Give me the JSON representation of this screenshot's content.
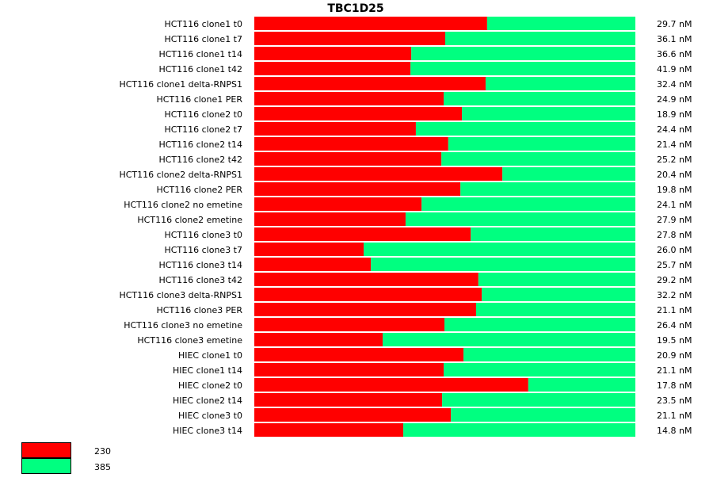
{
  "chart_data": {
    "type": "bar",
    "stacked": true,
    "normalized": true,
    "orientation": "horizontal",
    "title": "TBC1D25",
    "categories": [
      "HCT116 clone1 t0",
      "HCT116 clone1 t7",
      "HCT116 clone1 t14",
      "HCT116 clone1 t42",
      "HCT116 clone1 delta-RNPS1",
      "HCT116 clone1 PER",
      "HCT116 clone2 t0",
      "HCT116 clone2 t7",
      "HCT116 clone2 t14",
      "HCT116 clone2 t42",
      "HCT116 clone2 delta-RNPS1",
      "HCT116 clone2 PER",
      "HCT116 clone2 no emetine",
      "HCT116 clone2 emetine",
      "HCT116 clone3 t0",
      "HCT116 clone3 t7",
      "HCT116 clone3 t14",
      "HCT116 clone3 t42",
      "HCT116 clone3 delta-RNPS1",
      "HCT116 clone3 PER",
      "HCT116 clone3 no emetine",
      "HCT116 clone3 emetine",
      "HIEC clone1 t0",
      "HIEC clone1 t14",
      "HIEC clone2 t0",
      "HIEC clone2 t14",
      "HIEC clone3 t0",
      "HIEC clone3 t14"
    ],
    "totals": [
      "29.7 nM",
      "36.1 nM",
      "36.6 nM",
      "41.9 nM",
      "32.4 nM",
      "24.9 nM",
      "18.9 nM",
      "24.4 nM",
      "21.4 nM",
      "25.2 nM",
      "20.4 nM",
      "19.8 nM",
      "24.1 nM",
      "27.9 nM",
      "27.8 nM",
      "26.0 nM",
      "25.7 nM",
      "29.2 nM",
      "32.2 nM",
      "21.1 nM",
      "26.4 nM",
      "19.5 nM",
      "20.9 nM",
      "21.1 nM",
      "17.8 nM",
      "23.5 nM",
      "21.1 nM",
      "14.8 nM"
    ],
    "series": [
      {
        "name": "230",
        "color": "#FF0000",
        "values": [
          0.611,
          0.501,
          0.412,
          0.41,
          0.607,
          0.497,
          0.545,
          0.424,
          0.509,
          0.491,
          0.651,
          0.541,
          0.439,
          0.397,
          0.568,
          0.287,
          0.306,
          0.588,
          0.597,
          0.582,
          0.499,
          0.337,
          0.549,
          0.497,
          0.719,
          0.493,
          0.516,
          0.391
        ]
      },
      {
        "name": "385",
        "color": "#00FF80",
        "values": [
          0.389,
          0.499,
          0.588,
          0.59,
          0.393,
          0.503,
          0.455,
          0.576,
          0.491,
          0.509,
          0.349,
          0.459,
          0.561,
          0.603,
          0.432,
          0.713,
          0.694,
          0.412,
          0.403,
          0.418,
          0.501,
          0.663,
          0.451,
          0.503,
          0.281,
          0.507,
          0.484,
          0.609
        ]
      }
    ],
    "xlim": [
      0,
      1
    ],
    "legend": "bottom-left"
  }
}
